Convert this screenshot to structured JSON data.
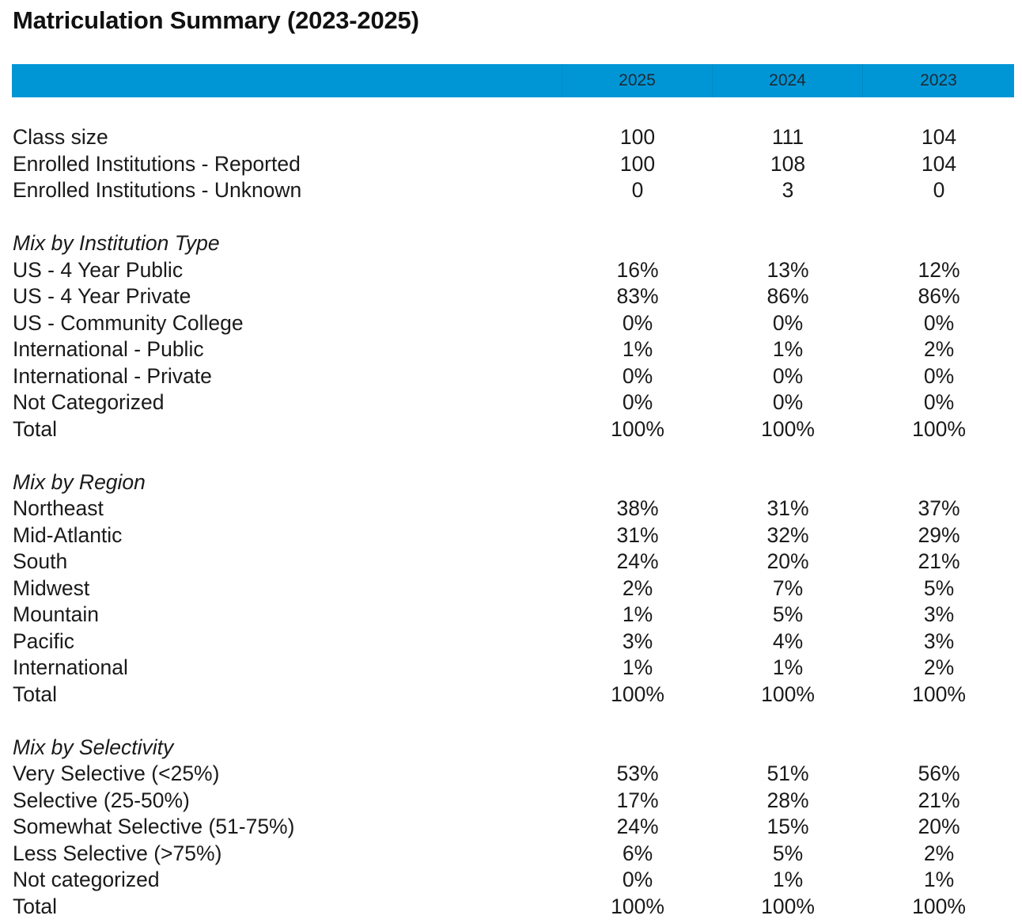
{
  "title": "Matriculation Summary (2023-2025)",
  "columns": [
    "2025",
    "2024",
    "2023"
  ],
  "summary": [
    {
      "label": "Class size",
      "values": [
        "100",
        "111",
        "104"
      ]
    },
    {
      "label": "Enrolled Institutions - Reported",
      "values": [
        "100",
        "108",
        "104"
      ]
    },
    {
      "label": "Enrolled Institutions - Unknown",
      "values": [
        "0",
        "3",
        "0"
      ]
    }
  ],
  "sections": [
    {
      "heading": "Mix by Institution Type",
      "rows": [
        {
          "label": "US - 4 Year Public",
          "values": [
            "16%",
            "13%",
            "12%"
          ]
        },
        {
          "label": "US - 4 Year Private",
          "values": [
            "83%",
            "86%",
            "86%"
          ]
        },
        {
          "label": "US - Community College",
          "values": [
            "0%",
            "0%",
            "0%"
          ]
        },
        {
          "label": "International - Public",
          "values": [
            "1%",
            "1%",
            "2%"
          ]
        },
        {
          "label": "International - Private",
          "values": [
            "0%",
            "0%",
            "0%"
          ]
        },
        {
          "label": "Not Categorized",
          "values": [
            "0%",
            "0%",
            "0%"
          ]
        },
        {
          "label": "Total",
          "values": [
            "100%",
            "100%",
            "100%"
          ]
        }
      ]
    },
    {
      "heading": "Mix by Region",
      "rows": [
        {
          "label": "Northeast",
          "values": [
            "38%",
            "31%",
            "37%"
          ]
        },
        {
          "label": "Mid-Atlantic",
          "values": [
            "31%",
            "32%",
            "29%"
          ]
        },
        {
          "label": "South",
          "values": [
            "24%",
            "20%",
            "21%"
          ]
        },
        {
          "label": "Midwest",
          "values": [
            "2%",
            "7%",
            "5%"
          ]
        },
        {
          "label": "Mountain",
          "values": [
            "1%",
            "5%",
            "3%"
          ]
        },
        {
          "label": "Pacific",
          "values": [
            "3%",
            "4%",
            "3%"
          ]
        },
        {
          "label": "International",
          "values": [
            "1%",
            "1%",
            "2%"
          ]
        },
        {
          "label": "Total",
          "values": [
            "100%",
            "100%",
            "100%"
          ]
        }
      ]
    },
    {
      "heading": "Mix by Selectivity",
      "rows": [
        {
          "label": "Very Selective (<25%)",
          "values": [
            "53%",
            "51%",
            "56%"
          ]
        },
        {
          "label": "Selective (25-50%)",
          "values": [
            "17%",
            "28%",
            "21%"
          ]
        },
        {
          "label": "Somewhat Selective (51-75%)",
          "values": [
            "24%",
            "15%",
            "20%"
          ]
        },
        {
          "label": "Less Selective (>75%)",
          "values": [
            "6%",
            "5%",
            "2%"
          ]
        },
        {
          "label": "Not categorized",
          "values": [
            "0%",
            "1%",
            "1%"
          ]
        },
        {
          "label": "Total",
          "values": [
            "100%",
            "100%",
            "100%"
          ]
        }
      ]
    }
  ],
  "colors": {
    "header_bar": "#0096d6"
  }
}
